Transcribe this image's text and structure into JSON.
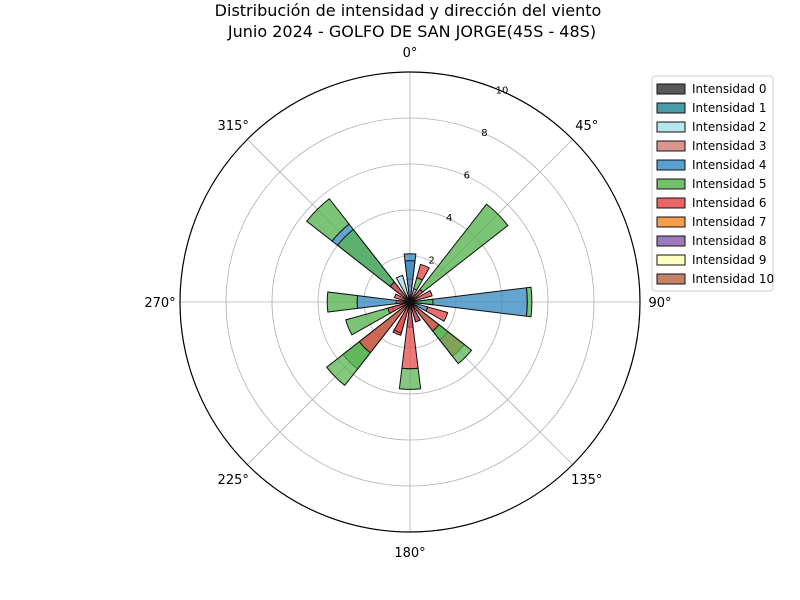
{
  "chart_data": {
    "type": "polar-stacked-bar",
    "title": "Distribución de intensidad y dirección del viento",
    "subtitle": "Junio 2024 - GOLFO DE SAN JORGE(45S - 48S)",
    "angle_tick_labels": [
      "0°",
      "45°",
      "90°",
      "135°",
      "180°",
      "225°",
      "270°",
      "315°"
    ],
    "radial_ticks": [
      2,
      4,
      6,
      8,
      10
    ],
    "rlim": [
      0,
      10
    ],
    "directions_deg": [
      0,
      22.5,
      45,
      67.5,
      90,
      112.5,
      135,
      157.5,
      180,
      202.5,
      225,
      247.5,
      270,
      292.5,
      315,
      337.5
    ],
    "legend_position": "top-right",
    "series": [
      {
        "name": "Intensidad 0",
        "color": "#3c3c3c",
        "values": [
          0.2,
          0.2,
          0.2,
          0.2,
          0.2,
          0.2,
          0.2,
          0.2,
          0.2,
          0.2,
          0.2,
          0.2,
          0.2,
          0.2,
          0.2,
          0.2
        ]
      },
      {
        "name": "Intensidad 1",
        "color": "#2a8a99",
        "values": [
          0,
          0,
          0,
          0,
          0,
          0,
          0,
          0,
          0,
          0,
          0,
          0,
          0,
          0,
          0,
          0
        ]
      },
      {
        "name": "Intensidad 2",
        "color": "#a8e0ea",
        "values": [
          0.5,
          0,
          0,
          0,
          0,
          0,
          0,
          0,
          0,
          0,
          0,
          0,
          0,
          0,
          0,
          1.0
        ]
      },
      {
        "name": "Intensidad 3",
        "color": "#d38479",
        "values": [
          0.3,
          0.4,
          0,
          0,
          0,
          0,
          0.3,
          0,
          0,
          0,
          0,
          0.6,
          0.2,
          0,
          0,
          0
        ]
      },
      {
        "name": "Intensidad 4",
        "color": "#3d8ec4",
        "values": [
          1.1,
          0,
          0,
          0,
          4.9,
          0.6,
          0,
          0.7,
          0.9,
          0,
          0,
          0,
          1.9,
          0,
          4.1,
          0
        ]
      },
      {
        "name": "Intensidad 5",
        "color": "#5ab552",
        "values": [
          0,
          0.5,
          5.2,
          0,
          0.2,
          0,
          1.6,
          0,
          0,
          0,
          3.5,
          2.1,
          1.3,
          0,
          1.4,
          0
        ]
      },
      {
        "name": "Intensidad 6",
        "color": "#e84a4a",
        "values": [
          0,
          0.6,
          0,
          0.8,
          0,
          0.9,
          0.9,
          0,
          0,
          1.3,
          0,
          0,
          0,
          0,
          0,
          0
        ]
      },
      {
        "name": "Intensidad 7",
        "color": "#f58c2c",
        "values": [
          0,
          0,
          0,
          0,
          0,
          0,
          0,
          0,
          0,
          0,
          0,
          0,
          0,
          0,
          0,
          0
        ]
      },
      {
        "name": "Intensidad 8",
        "color": "#8c62b2",
        "values": [
          0,
          0,
          0,
          0,
          0,
          0,
          0,
          0,
          0,
          0,
          0,
          0,
          0,
          0,
          0,
          0
        ]
      },
      {
        "name": "Intensidad 9",
        "color": "#fdfdb8",
        "values": [
          0,
          0,
          0,
          0,
          0,
          0,
          0,
          0,
          0,
          0,
          0,
          0,
          0,
          0,
          0,
          0
        ]
      },
      {
        "name": "Intensidad 10",
        "color": "#bb6c4d",
        "values": [
          0,
          0,
          0,
          0,
          0,
          0,
          0,
          0,
          0,
          0,
          0,
          0,
          0,
          0,
          0,
          0
        ]
      }
    ],
    "overlay_bars": [
      {
        "direction_deg": 0,
        "segments": [
          {
            "series": "Intensidad 4",
            "from": 0,
            "to": 1.8
          }
        ]
      },
      {
        "direction_deg": 90,
        "segments": [
          {
            "series": "Intensidad 5",
            "from": 0,
            "to": 1.0
          }
        ]
      },
      {
        "direction_deg": 135,
        "segments": [
          {
            "series": "Intensidad 6",
            "from": 0,
            "to": 1.6
          },
          {
            "series": "Intensidad 5",
            "from": 1.6,
            "to": 3.4
          }
        ]
      },
      {
        "direction_deg": 157.5,
        "segments": [
          {
            "series": "Intensidad 6",
            "from": 0,
            "to": 0.9
          }
        ]
      },
      {
        "direction_deg": 180,
        "segments": [
          {
            "series": "Intensidad 6",
            "from": 0,
            "to": 2.9
          },
          {
            "series": "Intensidad 5",
            "from": 2.9,
            "to": 3.8
          }
        ]
      },
      {
        "direction_deg": 202.5,
        "segments": [
          {
            "series": "Intensidad 6",
            "from": 0,
            "to": 1.4
          }
        ]
      },
      {
        "direction_deg": 225,
        "segments": [
          {
            "series": "Intensidad 6",
            "from": 0,
            "to": 2.8
          },
          {
            "series": "Intensidad 5",
            "from": 2.8,
            "to": 4.6
          }
        ]
      },
      {
        "direction_deg": 247.5,
        "segments": [
          {
            "series": "Intensidad 6",
            "from": 0,
            "to": 1.0
          }
        ]
      },
      {
        "direction_deg": 270,
        "segments": [
          {
            "series": "Intensidad 6",
            "from": 0,
            "to": 0.6
          }
        ]
      },
      {
        "direction_deg": 292.5,
        "segments": [
          {
            "series": "Intensidad 6",
            "from": 0,
            "to": 0.7
          }
        ]
      },
      {
        "direction_deg": 315,
        "segments": [
          {
            "series": "Intensidad 6",
            "from": 0,
            "to": 1.1
          },
          {
            "series": "Intensidad 5",
            "from": 1.1,
            "to": 4.0
          }
        ]
      },
      {
        "direction_deg": 45,
        "segments": [
          {
            "series": "Intensidad 6",
            "from": 0,
            "to": 0.7
          }
        ]
      }
    ]
  }
}
